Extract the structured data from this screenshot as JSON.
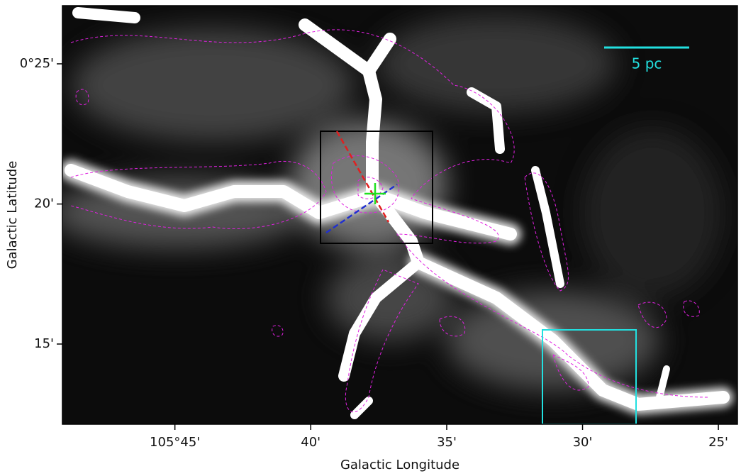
{
  "chart_data": {
    "type": "image",
    "xlabel": "Galactic Longitude",
    "ylabel": "Galactic Latitude",
    "scale_bar_label": "5 pc",
    "xlim": [
      105.819,
      105.405
    ],
    "ylim": [
      0.2023,
      0.4513
    ],
    "xticks": [
      {
        "value": 105.75,
        "label": "105°45'"
      },
      {
        "value": 105.6667,
        "label": "40'"
      },
      {
        "value": 105.5833,
        "label": "35'"
      },
      {
        "value": 105.5,
        "label": "30'"
      },
      {
        "value": 105.4167,
        "label": "25'"
      }
    ],
    "yticks": [
      {
        "value": 0.4167,
        "label": "0°25'"
      },
      {
        "value": 0.3333,
        "label": "20'"
      },
      {
        "value": 0.25,
        "label": "15'"
      }
    ]
  }
}
